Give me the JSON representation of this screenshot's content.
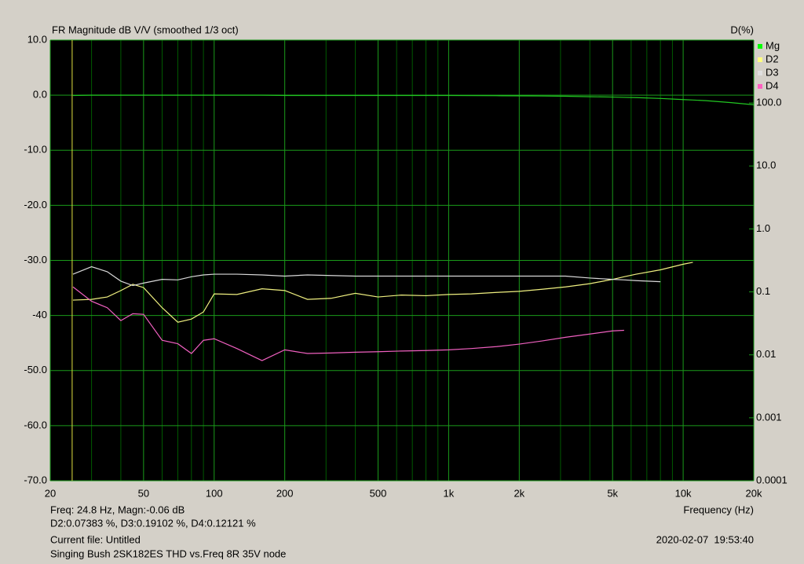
{
  "chart_data": {
    "type": "line",
    "title": "FR Magnitude dB V/V (smoothed 1/3 oct)",
    "y2_label": "D(%)",
    "x_label": "Frequency (Hz)",
    "x_scale": "log",
    "y2_scale": "log",
    "grid": true,
    "legend": "top-right",
    "xlim": [
      20,
      20000
    ],
    "xticks": [
      20,
      50,
      100,
      200,
      500,
      {
        "value": 1000,
        "label": "1k"
      },
      {
        "value": 2000,
        "label": "2k"
      },
      {
        "value": 5000,
        "label": "5k"
      },
      {
        "value": 10000,
        "label": "10k"
      },
      {
        "value": 20000,
        "label": "20k"
      }
    ],
    "xminorticks": [
      30,
      40,
      60,
      70,
      80,
      90,
      300,
      400,
      600,
      700,
      800,
      900,
      3000,
      4000,
      6000,
      7000,
      8000,
      9000
    ],
    "ylim": [
      -70,
      10
    ],
    "yticks": [
      {
        "value": 10,
        "label": "10.0"
      },
      {
        "value": 0,
        "label": "0.0"
      },
      {
        "value": -10,
        "label": "-10.0"
      },
      {
        "value": -20,
        "label": "-20.0"
      },
      {
        "value": -30,
        "label": "-30.0"
      },
      -40,
      {
        "value": -50,
        "label": "-50.0"
      },
      {
        "value": -60,
        "label": "-60.0"
      },
      {
        "value": -70,
        "label": "-70.0"
      }
    ],
    "y2lim": [
      0.0001,
      1000
    ],
    "y2ticks": [
      {
        "value": 100,
        "label": "100.0"
      },
      {
        "value": 10,
        "label": "10.0"
      },
      {
        "value": 1,
        "label": "1.0"
      },
      0.1,
      0.01,
      0.001,
      0.0001
    ],
    "cursor": 24.8,
    "x": [
      25,
      30,
      35,
      40,
      45,
      50,
      60,
      70,
      80,
      90,
      100,
      125,
      160,
      200,
      250,
      315,
      400,
      500,
      630,
      800,
      1000,
      1250,
      1600,
      2000,
      2500,
      3150,
      4000,
      5000,
      5600,
      6300,
      8000,
      10000,
      11000,
      12500,
      16000,
      20000
    ],
    "series": [
      {
        "name": "Mg",
        "color": "#22c822",
        "legend_color": "#00ff00",
        "axis": "y",
        "values": [
          -0.06,
          0,
          0,
          0,
          0,
          0,
          0,
          0,
          0,
          0,
          0,
          0,
          0,
          -0.05,
          -0.05,
          -0.05,
          -0.05,
          -0.05,
          -0.05,
          -0.05,
          -0.05,
          -0.08,
          -0.1,
          -0.12,
          -0.15,
          -0.2,
          -0.28,
          -0.35,
          -0.4,
          -0.45,
          -0.6,
          -0.8,
          -0.88,
          -1.0,
          -1.35,
          -1.75
        ]
      },
      {
        "name": "D2",
        "color": "#f0f080",
        "legend_color": "#ffff80",
        "axis": "y2",
        "values": [
          0.074,
          0.076,
          0.083,
          0.105,
          0.132,
          0.117,
          0.056,
          0.033,
          0.037,
          0.048,
          0.093,
          0.091,
          0.112,
          0.105,
          0.076,
          0.079,
          0.095,
          0.083,
          0.089,
          0.087,
          0.091,
          0.093,
          0.098,
          0.102,
          0.11,
          0.12,
          0.135,
          0.158,
          0.174,
          0.191,
          0.224,
          0.275,
          0.295,
          null,
          null,
          null
        ]
      },
      {
        "name": "D3",
        "color": "#d8d8d8",
        "legend_color": "#e0e0e0",
        "axis": "y2",
        "values": [
          0.191,
          0.251,
          0.209,
          0.148,
          0.126,
          0.138,
          0.158,
          0.155,
          0.174,
          0.186,
          0.191,
          0.191,
          0.186,
          0.178,
          0.186,
          0.182,
          0.178,
          0.178,
          0.178,
          0.178,
          0.178,
          0.178,
          0.178,
          0.178,
          0.178,
          0.178,
          0.166,
          0.158,
          0.155,
          0.151,
          0.145,
          null,
          null,
          null,
          null,
          null
        ]
      },
      {
        "name": "D4",
        "color": "#f060c0",
        "legend_color": "#ff60c0",
        "axis": "y2",
        "values": [
          0.12,
          0.071,
          0.056,
          0.035,
          0.045,
          0.044,
          0.017,
          0.015,
          0.0105,
          0.017,
          0.018,
          0.0126,
          0.0081,
          0.012,
          0.0105,
          0.0107,
          0.011,
          0.0112,
          0.0115,
          0.0117,
          0.012,
          0.0126,
          0.0135,
          0.0148,
          0.0166,
          0.019,
          0.0214,
          0.024,
          0.0245,
          null,
          null,
          null,
          null,
          null,
          null,
          null
        ]
      }
    ],
    "readout": [
      "Freq: 24.8 Hz, Magn:-0.06 dB",
      "D2:0.07383 %, D3:0.19102 %, D4:0.12121 %"
    ],
    "current_file": "Current file: Untitled",
    "timestamp": "2020-02-07  19:53:40",
    "description": "Singing Bush 2SK182ES THD vs.Freq 8R 35V node"
  }
}
